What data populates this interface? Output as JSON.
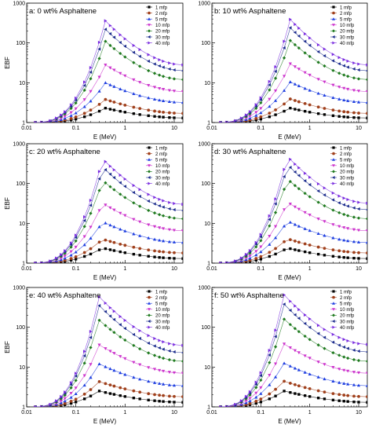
{
  "figure": {
    "series_labels": [
      "1 mfp",
      "2 mfp",
      "5 mfp",
      "10 mfp",
      "20 mfp",
      "30 mfp",
      "40 mfp"
    ],
    "colors": {
      "1 mfp": "#000000",
      "2 mfp": "#a0401c",
      "5 mfp": "#1f3fe0",
      "10 mfp": "#cc33cc",
      "20 mfp": "#1f7a1f",
      "30 mfp": "#1a2a8c",
      "40 mfp": "#7b2fe0"
    },
    "markers": {
      "1 mfp": "square",
      "2 mfp": "circle",
      "5 mfp": "triangle-up",
      "10 mfp": "triangle-down",
      "20 mfp": "diamond",
      "30 mfp": "triangle-left",
      "40 mfp": "triangle-right"
    }
  },
  "chart_data": [
    {
      "type": "scatter",
      "panel_label": "a: 0 wt% Asphaltene",
      "xlabel": "E (MeV)",
      "ylabel": "EBF",
      "xscale": "log",
      "yscale": "log",
      "xlim": [
        0.01,
        15
      ],
      "ylim": [
        1,
        1000
      ],
      "x_ticks": [
        "0.01",
        "0.1",
        "1",
        "10"
      ],
      "y_ticks": [
        "1",
        "10",
        "100",
        "1000"
      ],
      "legend_position": "top-right",
      "peak_energy": 0.4,
      "series": [
        {
          "name": "1 mfp",
          "peak": 2.3,
          "tail": 1.3
        },
        {
          "name": "2 mfp",
          "peak": 3.8,
          "tail": 1.7
        },
        {
          "name": "5 mfp",
          "peak": 10,
          "tail": 3.2
        },
        {
          "name": "10 mfp",
          "peak": 28,
          "tail": 6
        },
        {
          "name": "20 mfp",
          "peak": 110,
          "tail": 12
        },
        {
          "name": "30 mfp",
          "peak": 220,
          "tail": 20
        },
        {
          "name": "40 mfp",
          "peak": 360,
          "tail": 28
        }
      ]
    },
    {
      "type": "scatter",
      "panel_label": "b: 10 wt% Asphaltene",
      "xlabel": "E (MeV)",
      "ylabel": "",
      "xscale": "log",
      "yscale": "log",
      "xlim": [
        0.01,
        15
      ],
      "ylim": [
        1,
        1000
      ],
      "x_ticks": [
        "0.01",
        "0.1",
        "1",
        "10"
      ],
      "y_ticks": [
        "1",
        "10",
        "100",
        "1000"
      ],
      "legend_position": "top-right",
      "peak_energy": 0.4,
      "series": [
        {
          "name": "1 mfp",
          "peak": 2.3,
          "tail": 1.3
        },
        {
          "name": "2 mfp",
          "peak": 3.9,
          "tail": 1.7
        },
        {
          "name": "5 mfp",
          "peak": 10.5,
          "tail": 3.2
        },
        {
          "name": "10 mfp",
          "peak": 30,
          "tail": 6
        },
        {
          "name": "20 mfp",
          "peak": 115,
          "tail": 12
        },
        {
          "name": "30 mfp",
          "peak": 240,
          "tail": 20
        },
        {
          "name": "40 mfp",
          "peak": 390,
          "tail": 28
        }
      ]
    },
    {
      "type": "scatter",
      "panel_label": "c: 20 wt% Asphaltene",
      "xlabel": "E (MeV)",
      "ylabel": "EBF",
      "xscale": "log",
      "yscale": "log",
      "xlim": [
        0.01,
        15
      ],
      "ylim": [
        1,
        1000
      ],
      "x_ticks": [
        "0.01",
        "0.1",
        "1",
        "10"
      ],
      "y_ticks": [
        "1",
        "10",
        "100",
        "1000"
      ],
      "legend_position": "top-right",
      "peak_energy": 0.35,
      "series": [
        {
          "name": "1 mfp",
          "peak": 2.4,
          "tail": 1.3
        },
        {
          "name": "2 mfp",
          "peak": 4,
          "tail": 1.8
        },
        {
          "name": "5 mfp",
          "peak": 11,
          "tail": 3.3
        },
        {
          "name": "10 mfp",
          "peak": 32,
          "tail": 6.5
        },
        {
          "name": "20 mfp",
          "peak": 120,
          "tail": 13
        },
        {
          "name": "30 mfp",
          "peak": 260,
          "tail": 21
        },
        {
          "name": "40 mfp",
          "peak": 420,
          "tail": 30
        }
      ]
    },
    {
      "type": "scatter",
      "panel_label": "d: 30 wt% Asphaltene",
      "xlabel": "E (MeV)",
      "ylabel": "",
      "xscale": "log",
      "yscale": "log",
      "xlim": [
        0.01,
        15
      ],
      "ylim": [
        1,
        1000
      ],
      "x_ticks": [
        "0.01",
        "0.1",
        "1",
        "10"
      ],
      "y_ticks": [
        "1",
        "10",
        "100",
        "1000"
      ],
      "legend_position": "top-right",
      "peak_energy": 0.35,
      "series": [
        {
          "name": "1 mfp",
          "peak": 2.4,
          "tail": 1.3
        },
        {
          "name": "2 mfp",
          "peak": 4.1,
          "tail": 1.8
        },
        {
          "name": "5 mfp",
          "peak": 11.5,
          "tail": 3.3
        },
        {
          "name": "10 mfp",
          "peak": 34,
          "tail": 6.5
        },
        {
          "name": "20 mfp",
          "peak": 130,
          "tail": 13
        },
        {
          "name": "30 mfp",
          "peak": 300,
          "tail": 22
        },
        {
          "name": "40 mfp",
          "peak": 480,
          "tail": 32
        }
      ]
    },
    {
      "type": "scatter",
      "panel_label": "e: 40 wt% Asphaltene",
      "xlabel": "E (MeV)",
      "ylabel": "EBF",
      "xscale": "log",
      "yscale": "log",
      "xlim": [
        0.01,
        15
      ],
      "ylim": [
        1,
        1000
      ],
      "x_ticks": [
        "0.01",
        "0.1",
        "1",
        "10"
      ],
      "y_ticks": [
        "1",
        "10",
        "100",
        "1000"
      ],
      "legend_position": "top-right",
      "peak_energy": 0.3,
      "series": [
        {
          "name": "1 mfp",
          "peak": 2.5,
          "tail": 1.3
        },
        {
          "name": "2 mfp",
          "peak": 4.3,
          "tail": 1.8
        },
        {
          "name": "5 mfp",
          "peak": 12,
          "tail": 3.4
        },
        {
          "name": "10 mfp",
          "peak": 36,
          "tail": 7
        },
        {
          "name": "20 mfp",
          "peak": 150,
          "tail": 14
        },
        {
          "name": "30 mfp",
          "peak": 350,
          "tail": 23
        },
        {
          "name": "40 mfp",
          "peak": 580,
          "tail": 35
        }
      ]
    },
    {
      "type": "scatter",
      "panel_label": "f: 50 wt% Asphaltene",
      "xlabel": "E (MeV)",
      "ylabel": "",
      "xscale": "log",
      "yscale": "log",
      "xlim": [
        0.01,
        15
      ],
      "ylim": [
        1,
        1000
      ],
      "x_ticks": [
        "0.01",
        "0.1",
        "1",
        "10"
      ],
      "y_ticks": [
        "1",
        "10",
        "100",
        "1000"
      ],
      "legend_position": "top-right",
      "peak_energy": 0.3,
      "series": [
        {
          "name": "1 mfp",
          "peak": 2.5,
          "tail": 1.3
        },
        {
          "name": "2 mfp",
          "peak": 4.4,
          "tail": 1.8
        },
        {
          "name": "5 mfp",
          "peak": 12.5,
          "tail": 3.4
        },
        {
          "name": "10 mfp",
          "peak": 38,
          "tail": 7
        },
        {
          "name": "20 mfp",
          "peak": 160,
          "tail": 14
        },
        {
          "name": "30 mfp",
          "peak": 380,
          "tail": 24
        },
        {
          "name": "40 mfp",
          "peak": 650,
          "tail": 37
        }
      ]
    }
  ]
}
